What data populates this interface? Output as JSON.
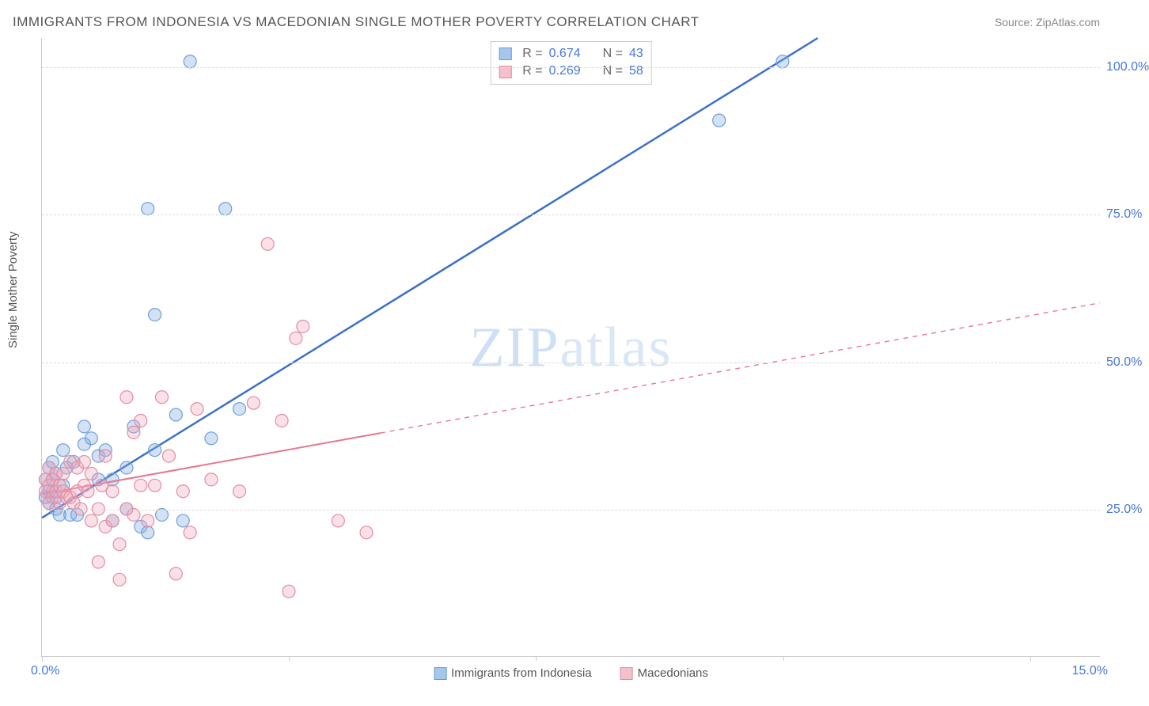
{
  "title": "IMMIGRANTS FROM INDONESIA VS MACEDONIAN SINGLE MOTHER POVERTY CORRELATION CHART",
  "source": "Source: ZipAtlas.com",
  "y_axis_label": "Single Mother Poverty",
  "watermark": {
    "bold": "ZIP",
    "light": "atlas"
  },
  "chart": {
    "type": "scatter",
    "background_color": "#ffffff",
    "grid_color": "#dddddd",
    "axis_color": "#cccccc",
    "xlim": [
      0,
      15
    ],
    "ylim": [
      0,
      105
    ],
    "x_ticks": [
      {
        "pos": 0.0,
        "label": "0.0%"
      },
      {
        "pos": 15.0,
        "label": "15.0%"
      }
    ],
    "x_tick_marks": [
      0,
      3.5,
      7.0,
      10.5,
      14.0
    ],
    "y_ticks": [
      {
        "pos": 25,
        "label": "25.0%"
      },
      {
        "pos": 50,
        "label": "50.0%"
      },
      {
        "pos": 75,
        "label": "75.0%"
      },
      {
        "pos": 100,
        "label": "100.0%"
      }
    ],
    "tick_color": "#4876d6",
    "tick_fontsize": 16
  },
  "legend_stats": {
    "rows": [
      {
        "r": "0.674",
        "n": "43",
        "swatch_fill": "#a7c6ec",
        "swatch_stroke": "#6699dd"
      },
      {
        "r": "0.269",
        "n": "58",
        "swatch_fill": "#f4c0cb",
        "swatch_stroke": "#e08ca0"
      }
    ],
    "r_label": "R =",
    "n_label": "N ="
  },
  "bottom_legend": [
    {
      "label": "Immigrants from Indonesia",
      "fill": "#a7c6ec",
      "stroke": "#6699dd"
    },
    {
      "label": "Macedonians",
      "fill": "#f4c0cb",
      "stroke": "#e08ca0"
    }
  ],
  "series": [
    {
      "name": "Immigrants from Indonesia",
      "color_fill": "rgba(130,170,225,0.35)",
      "color_stroke": "#6f9fd8",
      "marker_radius": 8,
      "line": {
        "color": "#3d6fc9",
        "width": 2.5,
        "dash": "none",
        "x1": 0.0,
        "y1": 23.5,
        "x2": 11.0,
        "y2": 105.0,
        "solid_until_x": 11.0
      },
      "points": [
        [
          0.05,
          27
        ],
        [
          0.05,
          30
        ],
        [
          0.1,
          26
        ],
        [
          0.1,
          32
        ],
        [
          0.1,
          28
        ],
        [
          0.15,
          28
        ],
        [
          0.15,
          30
        ],
        [
          0.15,
          33
        ],
        [
          0.2,
          25
        ],
        [
          0.2,
          27
        ],
        [
          0.2,
          31
        ],
        [
          0.25,
          24
        ],
        [
          0.3,
          29
        ],
        [
          0.3,
          35
        ],
        [
          0.35,
          32
        ],
        [
          0.4,
          24
        ],
        [
          0.45,
          33
        ],
        [
          0.5,
          24
        ],
        [
          0.6,
          39
        ],
        [
          0.6,
          36
        ],
        [
          0.7,
          37
        ],
        [
          0.8,
          30
        ],
        [
          0.8,
          34
        ],
        [
          0.9,
          35
        ],
        [
          1.0,
          23
        ],
        [
          1.0,
          30
        ],
        [
          1.2,
          32
        ],
        [
          1.2,
          25
        ],
        [
          1.3,
          39
        ],
        [
          1.4,
          22
        ],
        [
          1.5,
          21
        ],
        [
          1.5,
          76
        ],
        [
          1.6,
          58
        ],
        [
          1.6,
          35
        ],
        [
          1.7,
          24
        ],
        [
          1.9,
          41
        ],
        [
          2.0,
          23
        ],
        [
          2.1,
          101
        ],
        [
          2.4,
          37
        ],
        [
          2.6,
          76
        ],
        [
          2.8,
          42
        ],
        [
          9.6,
          91
        ],
        [
          10.5,
          101
        ]
      ]
    },
    {
      "name": "Macedonians",
      "color_fill": "rgba(240,170,185,0.35)",
      "color_stroke": "#e38ca3",
      "marker_radius": 8,
      "line": {
        "color": "#e57890",
        "width": 2,
        "dash": "6,6",
        "x1": 0.0,
        "y1": 27.5,
        "x2": 15.0,
        "y2": 60.0,
        "solid_until_x": 4.8
      },
      "points": [
        [
          0.05,
          28
        ],
        [
          0.05,
          30
        ],
        [
          0.1,
          26
        ],
        [
          0.1,
          29
        ],
        [
          0.1,
          32
        ],
        [
          0.15,
          27
        ],
        [
          0.15,
          30
        ],
        [
          0.2,
          28
        ],
        [
          0.2,
          31
        ],
        [
          0.25,
          26
        ],
        [
          0.25,
          29
        ],
        [
          0.3,
          28
        ],
        [
          0.3,
          31
        ],
        [
          0.35,
          27
        ],
        [
          0.4,
          27
        ],
        [
          0.4,
          33
        ],
        [
          0.45,
          26
        ],
        [
          0.5,
          28
        ],
        [
          0.5,
          32
        ],
        [
          0.55,
          25
        ],
        [
          0.6,
          29
        ],
        [
          0.6,
          33
        ],
        [
          0.65,
          28
        ],
        [
          0.7,
          23
        ],
        [
          0.7,
          31
        ],
        [
          0.8,
          16
        ],
        [
          0.8,
          25
        ],
        [
          0.85,
          29
        ],
        [
          0.9,
          22
        ],
        [
          0.9,
          34
        ],
        [
          1.0,
          23
        ],
        [
          1.0,
          28
        ],
        [
          1.1,
          13
        ],
        [
          1.1,
          19
        ],
        [
          1.2,
          25
        ],
        [
          1.2,
          44
        ],
        [
          1.3,
          24
        ],
        [
          1.3,
          38
        ],
        [
          1.4,
          29
        ],
        [
          1.4,
          40
        ],
        [
          1.5,
          23
        ],
        [
          1.6,
          29
        ],
        [
          1.7,
          44
        ],
        [
          1.8,
          34
        ],
        [
          1.9,
          14
        ],
        [
          2.0,
          28
        ],
        [
          2.1,
          21
        ],
        [
          2.2,
          42
        ],
        [
          2.4,
          30
        ],
        [
          2.8,
          28
        ],
        [
          3.0,
          43
        ],
        [
          3.2,
          70
        ],
        [
          3.4,
          40
        ],
        [
          3.5,
          11
        ],
        [
          3.6,
          54
        ],
        [
          3.7,
          56
        ],
        [
          4.2,
          23
        ],
        [
          4.6,
          21
        ]
      ]
    }
  ]
}
